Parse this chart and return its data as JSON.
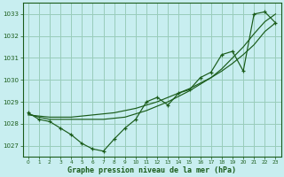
{
  "title": "Graphe pression niveau de la mer (hPa)",
  "bg_color": "#c8eef0",
  "grid_color": "#99ccbb",
  "line_color": "#1a5c1a",
  "xlim": [
    -0.5,
    23.5
  ],
  "ylim": [
    1026.5,
    1033.5
  ],
  "yticks": [
    1027,
    1028,
    1029,
    1030,
    1031,
    1032,
    1033
  ],
  "xticks": [
    0,
    1,
    2,
    3,
    4,
    5,
    6,
    7,
    8,
    9,
    10,
    11,
    12,
    13,
    14,
    15,
    16,
    17,
    18,
    19,
    20,
    21,
    22,
    23
  ],
  "x": [
    0,
    1,
    2,
    3,
    4,
    5,
    6,
    7,
    8,
    9,
    10,
    11,
    12,
    13,
    14,
    15,
    16,
    17,
    18,
    19,
    20,
    21,
    22,
    23
  ],
  "y_main": [
    1028.5,
    1028.2,
    1028.1,
    1027.8,
    1027.5,
    1027.1,
    1026.85,
    1026.75,
    1027.3,
    1027.8,
    1028.2,
    1029.0,
    1029.2,
    1028.85,
    1029.4,
    1029.55,
    1030.1,
    1030.35,
    1031.15,
    1031.3,
    1030.4,
    1033.0,
    1033.1,
    1032.6
  ],
  "y_smooth1": [
    1028.4,
    1028.35,
    1028.3,
    1028.3,
    1028.3,
    1028.35,
    1028.4,
    1028.45,
    1028.5,
    1028.6,
    1028.7,
    1028.85,
    1029.0,
    1029.2,
    1029.4,
    1029.6,
    1029.85,
    1030.1,
    1030.4,
    1030.75,
    1031.15,
    1031.6,
    1032.2,
    1032.6
  ],
  "y_smooth2": [
    1028.45,
    1028.3,
    1028.2,
    1028.2,
    1028.2,
    1028.2,
    1028.2,
    1028.2,
    1028.25,
    1028.3,
    1028.45,
    1028.6,
    1028.8,
    1029.0,
    1029.25,
    1029.5,
    1029.8,
    1030.1,
    1030.5,
    1031.0,
    1031.5,
    1032.1,
    1032.65,
    1033.0
  ]
}
